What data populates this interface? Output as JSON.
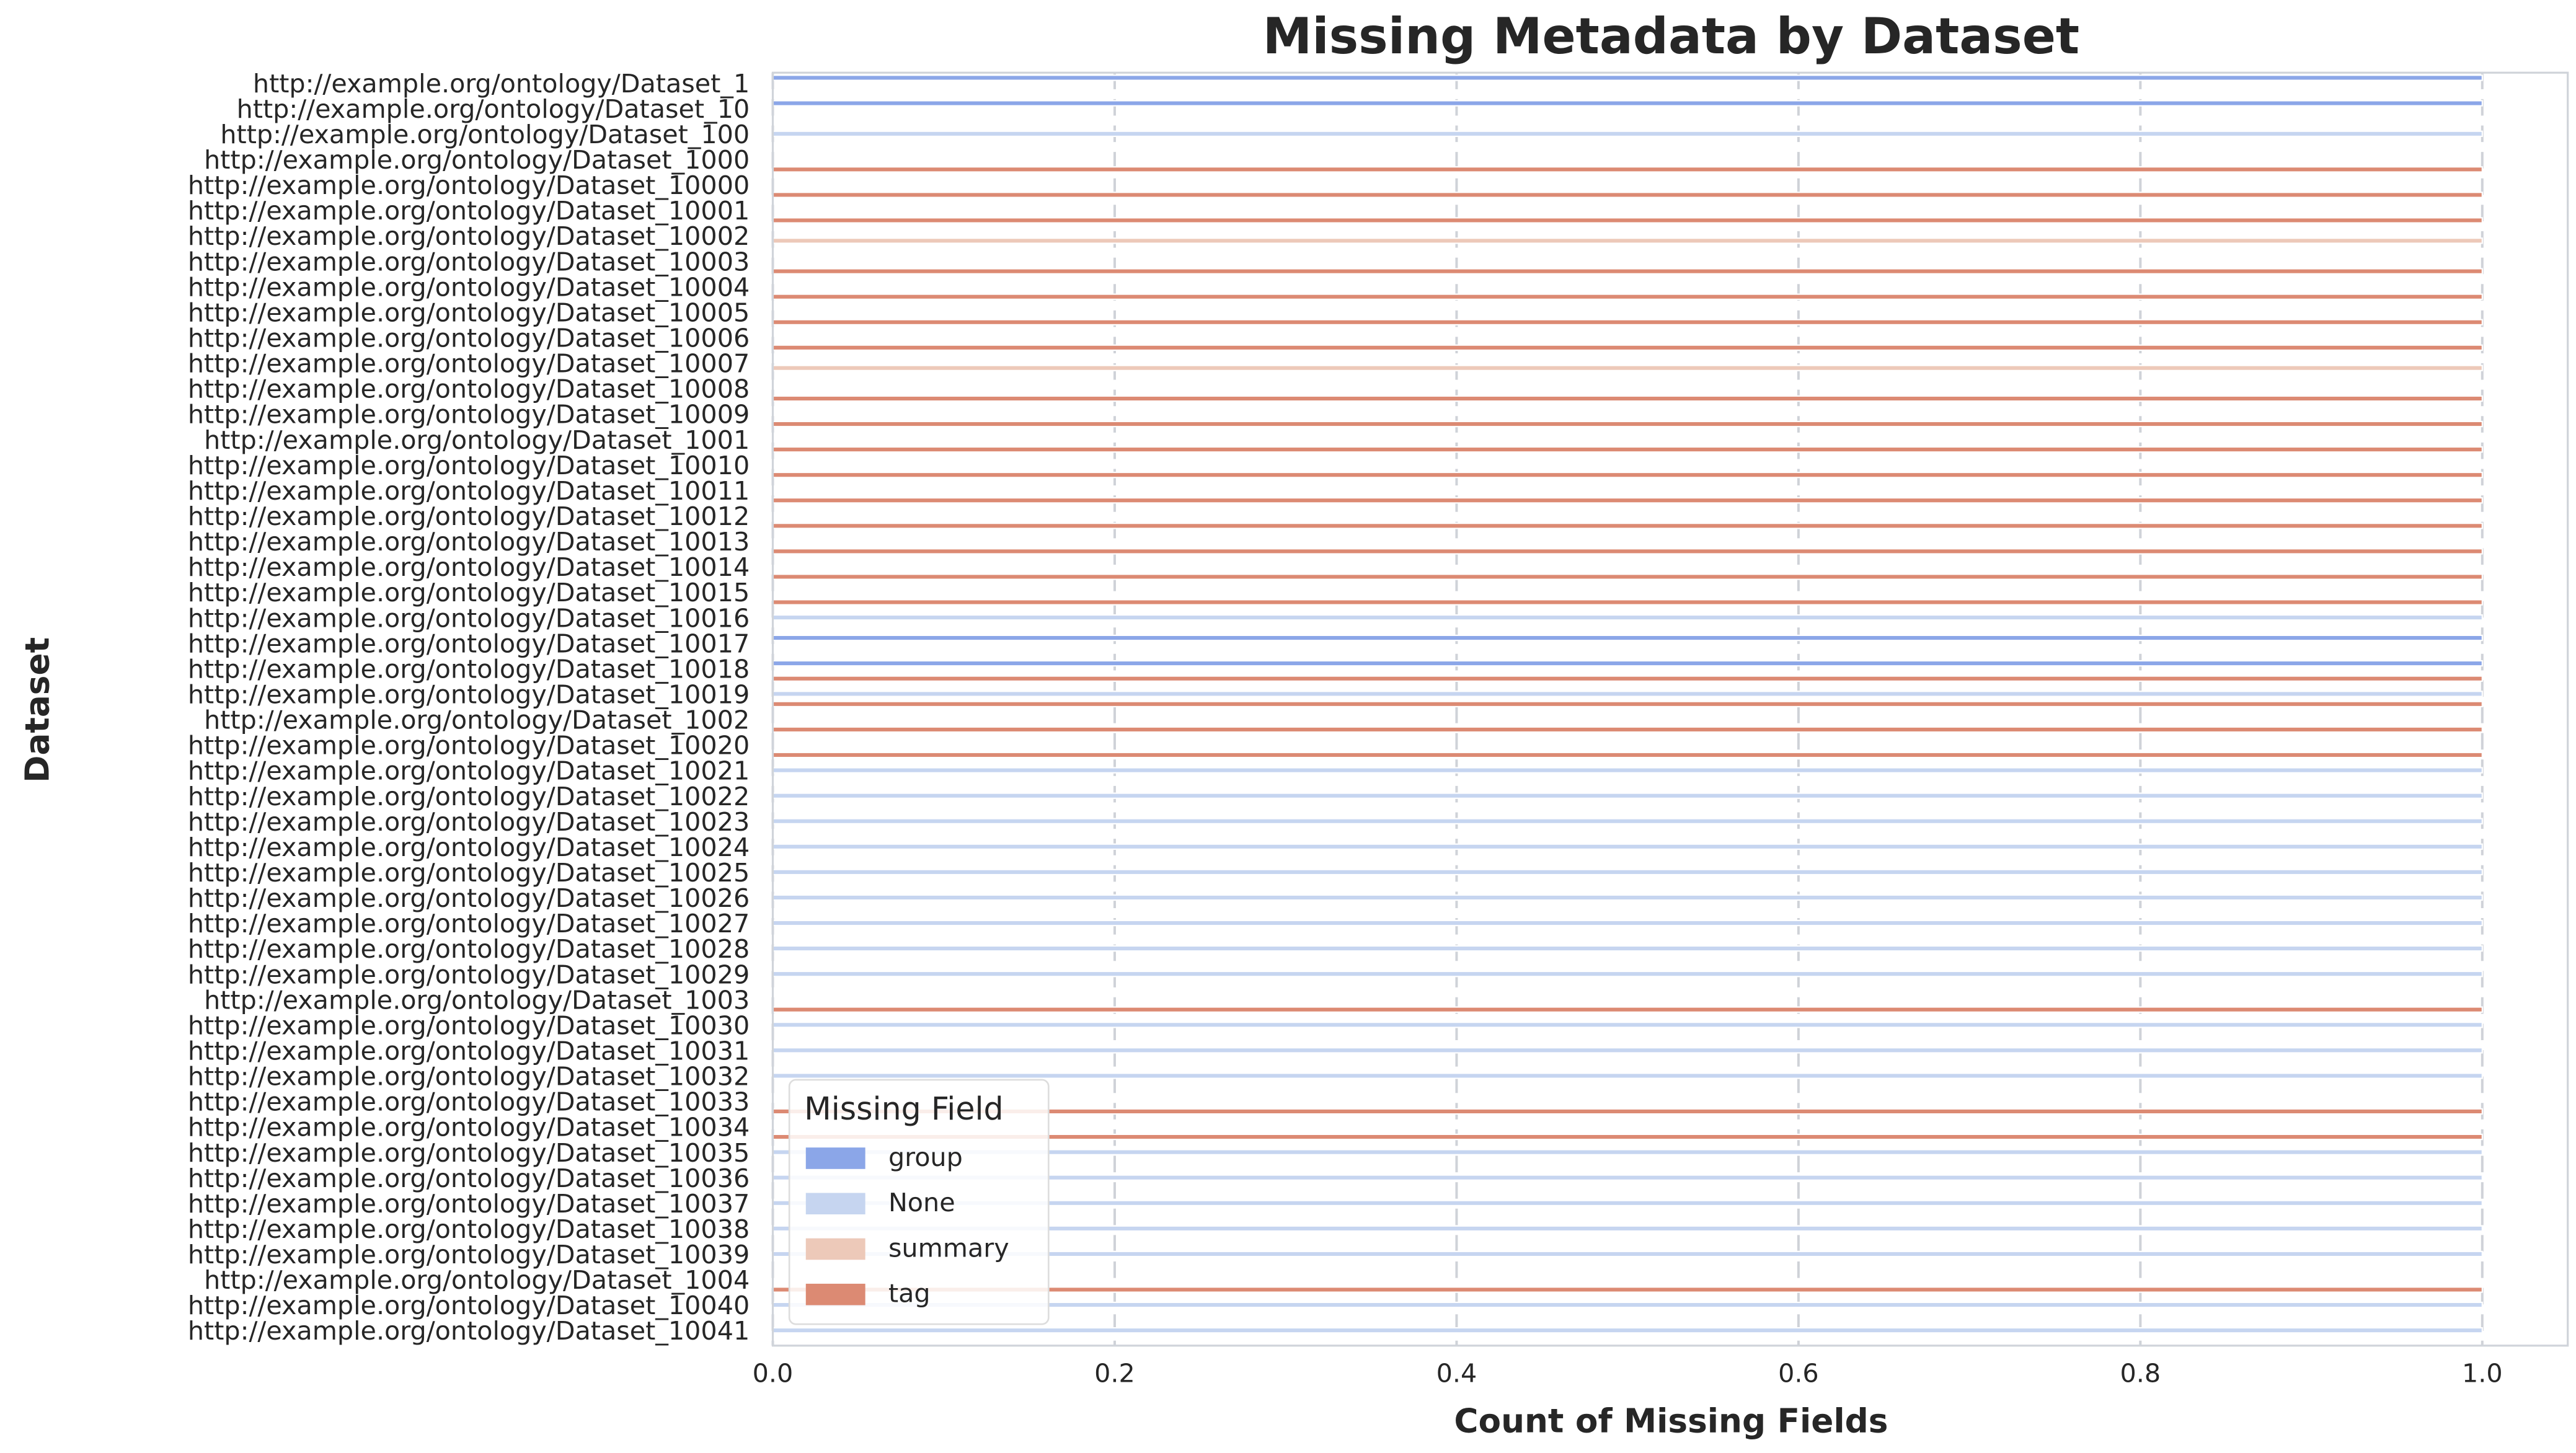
{
  "chart_data": {
    "type": "barh",
    "title": "Missing Metadata by Dataset",
    "x_label": "Count of Missing Fields",
    "y_label": "Dataset",
    "categories": [
      "http://example.org/ontology/Dataset_1",
      "http://example.org/ontology/Dataset_10",
      "http://example.org/ontology/Dataset_100",
      "http://example.org/ontology/Dataset_1000",
      "http://example.org/ontology/Dataset_10000",
      "http://example.org/ontology/Dataset_10001",
      "http://example.org/ontology/Dataset_10002",
      "http://example.org/ontology/Dataset_10003",
      "http://example.org/ontology/Dataset_10004",
      "http://example.org/ontology/Dataset_10005",
      "http://example.org/ontology/Dataset_10006",
      "http://example.org/ontology/Dataset_10007",
      "http://example.org/ontology/Dataset_10008",
      "http://example.org/ontology/Dataset_10009",
      "http://example.org/ontology/Dataset_1001",
      "http://example.org/ontology/Dataset_10010",
      "http://example.org/ontology/Dataset_10011",
      "http://example.org/ontology/Dataset_10012",
      "http://example.org/ontology/Dataset_10013",
      "http://example.org/ontology/Dataset_10014",
      "http://example.org/ontology/Dataset_10015",
      "http://example.org/ontology/Dataset_10016",
      "http://example.org/ontology/Dataset_10017",
      "http://example.org/ontology/Dataset_10018",
      "http://example.org/ontology/Dataset_10019",
      "http://example.org/ontology/Dataset_1002",
      "http://example.org/ontology/Dataset_10020",
      "http://example.org/ontology/Dataset_10021",
      "http://example.org/ontology/Dataset_10022",
      "http://example.org/ontology/Dataset_10023",
      "http://example.org/ontology/Dataset_10024",
      "http://example.org/ontology/Dataset_10025",
      "http://example.org/ontology/Dataset_10026",
      "http://example.org/ontology/Dataset_10027",
      "http://example.org/ontology/Dataset_10028",
      "http://example.org/ontology/Dataset_10029",
      "http://example.org/ontology/Dataset_1003",
      "http://example.org/ontology/Dataset_10030",
      "http://example.org/ontology/Dataset_10031",
      "http://example.org/ontology/Dataset_10032",
      "http://example.org/ontology/Dataset_10033",
      "http://example.org/ontology/Dataset_10034",
      "http://example.org/ontology/Dataset_10035",
      "http://example.org/ontology/Dataset_10036",
      "http://example.org/ontology/Dataset_10037",
      "http://example.org/ontology/Dataset_10038",
      "http://example.org/ontology/Dataset_10039",
      "http://example.org/ontology/Dataset_1004",
      "http://example.org/ontology/Dataset_10040",
      "http://example.org/ontology/Dataset_10041"
    ],
    "series": [
      {
        "name": "group",
        "color": "#8ba6e8",
        "values": [
          1,
          1,
          0,
          0,
          0,
          0,
          0,
          0,
          0,
          0,
          0,
          0,
          0,
          0,
          0,
          0,
          0,
          0,
          0,
          0,
          0,
          0,
          1,
          1,
          0,
          0,
          0,
          0,
          0,
          0,
          0,
          0,
          0,
          0,
          0,
          0,
          0,
          0,
          0,
          0,
          0,
          0,
          0,
          0,
          0,
          0,
          0,
          0,
          0,
          0
        ]
      },
      {
        "name": "None",
        "color": "#c6d5f0",
        "values": [
          0,
          0,
          1,
          0,
          0,
          0,
          0,
          0,
          0,
          0,
          0,
          0,
          0,
          0,
          0,
          0,
          0,
          0,
          0,
          0,
          0,
          1,
          0,
          0,
          1,
          0,
          0,
          1,
          1,
          1,
          1,
          1,
          1,
          1,
          1,
          1,
          0,
          1,
          1,
          1,
          0,
          0,
          1,
          1,
          1,
          1,
          1,
          0,
          1,
          1
        ]
      },
      {
        "name": "summary",
        "color": "#edc9b9",
        "values": [
          0,
          0,
          0,
          0,
          0,
          0,
          1,
          0,
          0,
          0,
          0,
          1,
          0,
          0,
          0,
          0,
          0,
          0,
          0,
          0,
          0,
          0,
          0,
          0,
          0,
          0,
          0,
          0,
          0,
          0,
          0,
          0,
          0,
          0,
          0,
          0,
          0,
          0,
          0,
          0,
          0,
          0,
          0,
          0,
          0,
          0,
          0,
          0,
          0,
          0
        ]
      },
      {
        "name": "tag",
        "color": "#dc8a73",
        "values": [
          0,
          0,
          0,
          1,
          1,
          1,
          0,
          1,
          1,
          1,
          1,
          0,
          1,
          1,
          1,
          1,
          1,
          1,
          1,
          1,
          1,
          0,
          0,
          1,
          1,
          1,
          1,
          0,
          0,
          0,
          0,
          0,
          0,
          0,
          0,
          0,
          1,
          0,
          0,
          0,
          1,
          1,
          0,
          0,
          0,
          0,
          0,
          1,
          0,
          0
        ]
      }
    ],
    "xlim": [
      0,
      1.05
    ],
    "xticks": [
      {
        "value": 0,
        "label": "0.0"
      },
      0.2,
      0.4,
      0.6,
      0.8,
      {
        "value": 1,
        "label": "1.0"
      }
    ],
    "grid": true,
    "legend_title": "Missing Field",
    "legend": "lower left"
  }
}
